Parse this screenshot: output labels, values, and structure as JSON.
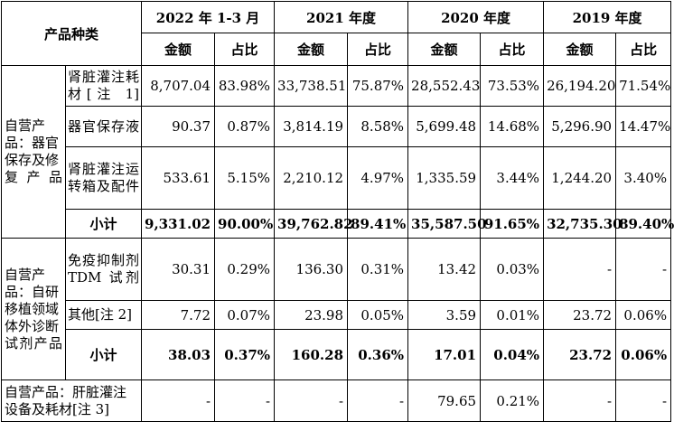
{
  "header": {
    "category": "产品种类",
    "periods": [
      "2022 年 1-3 月",
      "2021 年度",
      "2020 年度",
      "2019 年度"
    ],
    "amount": "金额",
    "ratio": "占比"
  },
  "groups": [
    {
      "category": "自营产品：器官保存及修复产品",
      "rows": [
        {
          "name": "肾脏灌注耗材[注 1]",
          "values": [
            "8,707.04",
            "83.98%",
            "33,738.51",
            "75.87%",
            "28,552.43",
            "73.53%",
            "26,194.20",
            "71.54%"
          ]
        },
        {
          "name": "器官保存液",
          "values": [
            "90.37",
            "0.87%",
            "3,814.19",
            "8.58%",
            "5,699.48",
            "14.68%",
            "5,296.90",
            "14.47%"
          ]
        },
        {
          "name": "肾脏灌注运转箱及配件",
          "values": [
            "533.61",
            "5.15%",
            "2,210.12",
            "4.97%",
            "1,335.59",
            "3.44%",
            "1,244.20",
            "3.40%"
          ]
        }
      ],
      "subtotal": {
        "label": "小计",
        "values": [
          "9,331.02",
          "90.00%",
          "39,762.82",
          "89.41%",
          "35,587.50",
          "91.65%",
          "32,735.30",
          "89.40%"
        ]
      }
    },
    {
      "category": "自营产品：自研移植领域体外诊断试剂产品",
      "rows": [
        {
          "name": "免疫抑制剂 TDM 试剂",
          "values": [
            "30.31",
            "0.29%",
            "136.30",
            "0.31%",
            "13.42",
            "0.03%",
            "-",
            "-"
          ]
        },
        {
          "name": "其他[注 2]",
          "values": [
            "7.72",
            "0.07%",
            "23.98",
            "0.05%",
            "3.59",
            "0.01%",
            "23.72",
            "0.06%"
          ]
        }
      ],
      "subtotal": {
        "label": "小计",
        "values": [
          "38.03",
          "0.37%",
          "160.28",
          "0.36%",
          "17.01",
          "0.04%",
          "23.72",
          "0.06%"
        ]
      }
    }
  ],
  "last_row": {
    "name": "自营产品：肝脏灌注设备及耗材[注 3]",
    "values": [
      "-",
      "-",
      "-",
      "-",
      "79.65",
      "0.21%",
      "-",
      "-"
    ]
  }
}
